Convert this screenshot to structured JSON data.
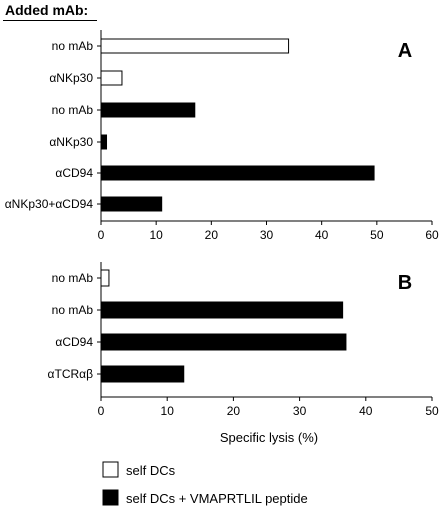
{
  "header": {
    "label": "Added mAb:"
  },
  "colors": {
    "self_dcs": "#ffffff",
    "self_dcs_peptide": "#000000",
    "outline": "#000000"
  },
  "shared": {
    "xlabel": "Specific lysis (%)"
  },
  "chart_data": [
    {
      "type": "bar",
      "orientation": "horizontal",
      "panel_label": "A",
      "categories": [
        "no mAb",
        "αNKp30",
        "no mAb",
        "αNKp30",
        "αCD94",
        "αNKp30+αCD94"
      ],
      "values": [
        34,
        3.8,
        17,
        1,
        49.5,
        11
      ],
      "fills": [
        "self_dcs",
        "self_dcs",
        "self_dcs_peptide",
        "self_dcs_peptide",
        "self_dcs_peptide",
        "self_dcs_peptide"
      ],
      "xlim": [
        0,
        60
      ],
      "xticks": [
        0,
        10,
        20,
        30,
        40,
        50,
        60
      ],
      "grid": false
    },
    {
      "type": "bar",
      "orientation": "horizontal",
      "panel_label": "B",
      "categories": [
        "no mAb",
        "no mAb",
        "αCD94",
        "αTCRαβ"
      ],
      "values": [
        1.2,
        36.5,
        37,
        12.5
      ],
      "fills": [
        "self_dcs",
        "self_dcs_peptide",
        "self_dcs_peptide",
        "self_dcs_peptide"
      ],
      "xlim": [
        0,
        50
      ],
      "xticks": [
        0,
        10,
        20,
        30,
        40,
        50
      ],
      "xlabel": "Specific lysis (%)",
      "grid": false
    }
  ],
  "legend": {
    "placement": "bottom-left",
    "items": [
      {
        "label": "self DCs",
        "fill": "self_dcs"
      },
      {
        "label": "self DCs + VMAPRTLIL peptide",
        "fill": "self_dcs_peptide"
      }
    ]
  }
}
